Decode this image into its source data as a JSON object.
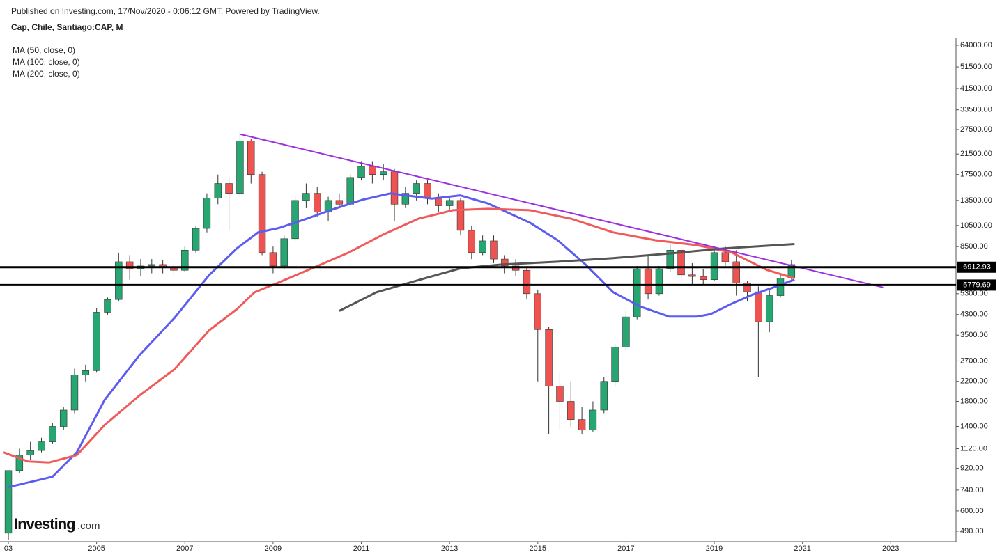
{
  "header": {
    "published": "Published on Investing.com, 17/Nov/2020 - 0:06:12 GMT, Powered by TradingView.",
    "instrument": "Cap, Chile, Santiago:CAP, M",
    "logo": {
      "brand": "Investing",
      "suffix": ".com"
    }
  },
  "chart_data": {
    "type": "candlestick",
    "log_scale": true,
    "up_color": "#26a671",
    "down_color": "#ef5350",
    "x": [
      2003,
      2003.25,
      2003.5,
      2003.75,
      2004,
      2004.25,
      2004.5,
      2004.75,
      2005,
      2005.25,
      2005.5,
      2005.75,
      2006,
      2006.25,
      2006.5,
      2006.75,
      2007,
      2007.25,
      2007.5,
      2007.75,
      2008,
      2008.25,
      2008.5,
      2008.75,
      2009,
      2009.25,
      2009.5,
      2009.75,
      2010,
      2010.25,
      2010.5,
      2010.75,
      2011,
      2011.25,
      2011.5,
      2011.75,
      2012,
      2012.25,
      2012.5,
      2012.75,
      2013,
      2013.25,
      2013.5,
      2013.75,
      2014,
      2014.25,
      2014.5,
      2014.75,
      2015,
      2015.25,
      2015.5,
      2015.75,
      2016,
      2016.25,
      2016.5,
      2016.75,
      2017,
      2017.25,
      2017.5,
      2017.75,
      2018,
      2018.25,
      2018.5,
      2018.75,
      2019,
      2019.25,
      2019.5,
      2019.75,
      2020,
      2020.25,
      2020.5,
      2020.75
    ],
    "open": [
      480,
      900,
      1050,
      1100,
      1200,
      1400,
      1650,
      2350,
      2450,
      4400,
      5000,
      7300,
      6800,
      7000,
      7100,
      6900,
      6700,
      8200,
      10200,
      13800,
      16000,
      14500,
      24500,
      17500,
      8000,
      7000,
      9200,
      13500,
      14500,
      12000,
      13500,
      13000,
      17000,
      19000,
      17500,
      18000,
      13000,
      14500,
      16000,
      13800,
      12800,
      13500,
      10000,
      8000,
      9000,
      7500,
      7000,
      6700,
      5300,
      3700,
      2100,
      1800,
      1500,
      1350,
      1650,
      2200,
      3100,
      4200,
      6800,
      5300,
      6800,
      8200,
      6400,
      6300,
      6100,
      8000,
      7300,
      5900,
      5400,
      4000,
      5200,
      6200
    ],
    "high": [
      600,
      1120,
      1200,
      1250,
      1450,
      1700,
      2500,
      2600,
      4600,
      5100,
      8000,
      7800,
      7500,
      7500,
      7400,
      7200,
      8500,
      10500,
      14500,
      17500,
      17000,
      27000,
      25000,
      18000,
      8500,
      9500,
      14000,
      16000,
      15500,
      14000,
      14500,
      17500,
      20000,
      20000,
      19500,
      18500,
      15500,
      16500,
      16500,
      14500,
      14000,
      13800,
      10500,
      9500,
      9500,
      7800,
      7500,
      6900,
      5500,
      3800,
      2400,
      2200,
      1700,
      1800,
      2300,
      3200,
      4500,
      7000,
      7800,
      7000,
      8700,
      8500,
      7200,
      6800,
      8200,
      8500,
      8200,
      6000,
      5700,
      5500,
      6500,
      7400
    ],
    "low": [
      450,
      880,
      1000,
      1080,
      1180,
      1350,
      1600,
      2200,
      2400,
      4300,
      4900,
      6100,
      6300,
      6500,
      6500,
      6400,
      6600,
      8000,
      9800,
      13000,
      10000,
      14000,
      16000,
      7800,
      6500,
      6800,
      9000,
      12500,
      11500,
      11000,
      12500,
      12800,
      16500,
      16000,
      16500,
      11000,
      12500,
      13500,
      13000,
      12000,
      12000,
      9500,
      7500,
      7800,
      7200,
      6500,
      6300,
      5000,
      2200,
      1300,
      1350,
      1400,
      1300,
      1330,
      1600,
      2100,
      3000,
      4100,
      5000,
      5200,
      6600,
      6000,
      5800,
      5800,
      6000,
      7000,
      5200,
      4900,
      2300,
      3600,
      5100,
      6100
    ],
    "close": [
      900,
      1050,
      1100,
      1200,
      1400,
      1650,
      2350,
      2450,
      4400,
      5000,
      7300,
      6800,
      7000,
      7100,
      6900,
      6700,
      8200,
      10200,
      13800,
      16000,
      14500,
      24500,
      17500,
      8000,
      7000,
      9200,
      13500,
      14500,
      12000,
      13500,
      13000,
      17000,
      19000,
      17500,
      18000,
      13000,
      14500,
      16000,
      13800,
      12800,
      13500,
      10000,
      8000,
      9000,
      7500,
      7000,
      6700,
      5300,
      3700,
      2100,
      1800,
      1500,
      1350,
      1650,
      2200,
      3100,
      4200,
      6800,
      5300,
      6800,
      8200,
      6400,
      6300,
      6100,
      8000,
      7300,
      5900,
      5400,
      4000,
      5200,
      6200,
      7100
    ],
    "indicators": [
      {
        "name": "MA (50, close, 0)",
        "color": "#5c5cf0",
        "x": [
          2003,
          2004,
          2004.55,
          2005.18,
          2005.97,
          2006.76,
          2007.55,
          2008.18,
          2008.66,
          2009.13,
          2009.76,
          2010.39,
          2011.03,
          2011.66,
          2012.6,
          2013.24,
          2013.87,
          2014.82,
          2015.45,
          2016.08,
          2016.71,
          2017.34,
          2017.98,
          2018.61,
          2018.92,
          2019.4,
          2019.87,
          2020.35,
          2020.82
        ],
        "values": [
          762,
          846,
          1080,
          1825,
          2860,
          4150,
          6380,
          8350,
          9800,
          10240,
          11230,
          12410,
          13600,
          14480,
          13750,
          14200,
          13100,
          10800,
          9060,
          7100,
          5375,
          4650,
          4210,
          4210,
          4320,
          4800,
          5250,
          5650,
          6100
        ]
      },
      {
        "name": "MA (100, close, 0)",
        "color": "#f05a5a",
        "x": [
          2002.89,
          2003.44,
          2003.92,
          2004.55,
          2005.18,
          2005.97,
          2006.76,
          2007.55,
          2008.18,
          2008.58,
          2009.13,
          2009.92,
          2010.71,
          2011.5,
          2012.29,
          2013.08,
          2013.87,
          2014.82,
          2015.76,
          2016.71,
          2017.66,
          2018.61,
          2019.4,
          2020.19,
          2020.82
        ],
        "values": [
          1080,
          986,
          975,
          1050,
          1420,
          1910,
          2480,
          3670,
          4540,
          5375,
          5930,
          6880,
          8000,
          9600,
          11230,
          12240,
          12410,
          12240,
          11230,
          9800,
          9060,
          8620,
          8000,
          6730,
          6180
        ]
      },
      {
        "name": "MA (200, close, 0)",
        "color": "#555555",
        "x": [
          2010.5,
          2011.34,
          2012.29,
          2013.24,
          2014.18,
          2015.45,
          2016.71,
          2017.98,
          2019.24,
          2020.82
        ],
        "values": [
          4460,
          5375,
          6070,
          6830,
          7100,
          7300,
          7570,
          7930,
          8350,
          8720
        ]
      }
    ],
    "trendline": {
      "color": "#9b30e0",
      "x": [
        2008.26,
        2022.83
      ],
      "values": [
        26200,
        5645
      ]
    },
    "levels": [
      6912.93,
      5779.69
    ],
    "xlim": [
      2002.81,
      2024.48
    ],
    "xticks": [
      {
        "value": 2003,
        "label": "03"
      },
      2005,
      2007,
      2009,
      2011,
      2013,
      2015,
      2017,
      2019,
      2021,
      2023
    ],
    "ylim": [
      441,
      68600
    ],
    "yticks": [
      {
        "value": 490,
        "label": "490.00"
      },
      {
        "value": 600,
        "label": "600.00"
      },
      {
        "value": 740,
        "label": "740.00"
      },
      {
        "value": 920,
        "label": "920.00"
      },
      {
        "value": 1120,
        "label": "1120.00"
      },
      {
        "value": 1400,
        "label": "1400.00"
      },
      {
        "value": 1800,
        "label": "1800.00"
      },
      {
        "value": 2200,
        "label": "2200.00"
      },
      {
        "value": 2700,
        "label": "2700.00"
      },
      {
        "value": 3500,
        "label": "3500.00"
      },
      {
        "value": 4300,
        "label": "4300.00"
      },
      {
        "value": 5300,
        "label": "5300.00"
      },
      {
        "value": 8500,
        "label": "8500.00"
      },
      {
        "value": 10500,
        "label": "10500.00"
      },
      {
        "value": 13500,
        "label": "13500.00"
      },
      {
        "value": 17500,
        "label": "17500.00"
      },
      {
        "value": 21500,
        "label": "21500.00"
      },
      {
        "value": 27500,
        "label": "27500.00"
      },
      {
        "value": 33500,
        "label": "33500.00"
      },
      {
        "value": 41500,
        "label": "41500.00"
      },
      {
        "value": 51500,
        "label": "51500.00"
      },
      {
        "value": 64000,
        "label": "64000.00"
      }
    ]
  }
}
